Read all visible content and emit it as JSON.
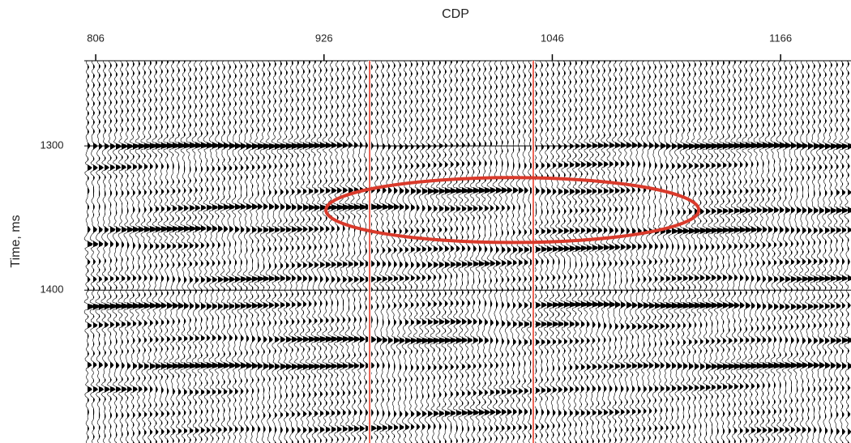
{
  "chart_data": {
    "type": "seismic",
    "xlabel": "CDP",
    "ylabel": "Time, ms",
    "xlim": [
      800,
      1203
    ],
    "xticks": [
      806,
      926,
      1046,
      1166
    ],
    "ylim": [
      1241,
      1506
    ],
    "yticks": [
      1300,
      1400
    ],
    "grid": true,
    "markers": [
      950,
      1036
    ],
    "marker_color": "#e8321e",
    "highlight": {
      "xlim": [
        927,
        1123
      ],
      "ylim": [
        1322,
        1367
      ],
      "color": "#d93a2b"
    }
  }
}
